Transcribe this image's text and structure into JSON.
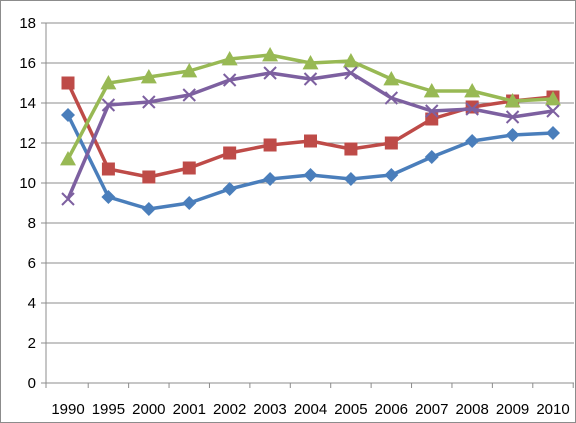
{
  "chart_data": {
    "type": "line",
    "categories": [
      "1990",
      "1995",
      "2000",
      "2001",
      "2002",
      "2003",
      "2004",
      "2005",
      "2006",
      "2007",
      "2008",
      "2009",
      "2010"
    ],
    "ylim": [
      0,
      18
    ],
    "yticks": [
      0,
      2,
      4,
      6,
      8,
      10,
      12,
      14,
      16,
      18
    ],
    "grid": {
      "horizontal": true,
      "vertical": false
    },
    "legend": "none",
    "series": [
      {
        "color": "#4a7ebb",
        "marker": "diamond",
        "values": [
          13.4,
          9.3,
          8.7,
          9.0,
          9.7,
          10.2,
          10.4,
          10.2,
          10.4,
          11.3,
          12.1,
          12.4,
          12.5
        ]
      },
      {
        "color": "#be4b48",
        "marker": "square",
        "values": [
          15.0,
          10.7,
          10.3,
          10.75,
          11.5,
          11.9,
          12.1,
          11.7,
          12.0,
          13.2,
          13.8,
          14.1,
          14.3
        ]
      },
      {
        "color": "#98b954",
        "marker": "triangle",
        "values": [
          11.2,
          15.0,
          15.3,
          15.6,
          16.2,
          16.4,
          16.0,
          16.1,
          15.2,
          14.6,
          14.6,
          14.1,
          14.2
        ]
      },
      {
        "color": "#7d60a0",
        "marker": "x",
        "values": [
          9.2,
          13.9,
          14.05,
          14.4,
          15.15,
          15.5,
          15.2,
          15.5,
          14.25,
          13.6,
          13.7,
          13.3,
          13.6
        ]
      }
    ]
  }
}
